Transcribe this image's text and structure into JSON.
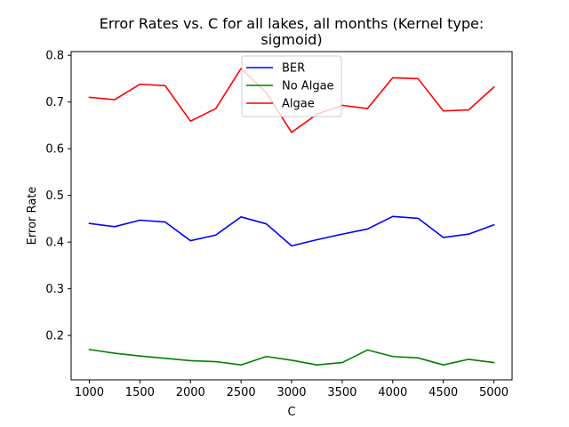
{
  "chart_data": {
    "type": "line",
    "title_line1": "Error Rates vs. C for all lakes, all months (Kernel type:",
    "title_line2": "sigmoid)",
    "xlabel": "C",
    "ylabel": "Error Rate",
    "xlim": [
      820,
      5180
    ],
    "ylim": [
      0.105,
      0.808
    ],
    "xticks": [
      1000,
      1500,
      2000,
      2500,
      3000,
      3500,
      4000,
      4500,
      5000
    ],
    "yticks": [
      0.2,
      0.3,
      0.4,
      0.5,
      0.6,
      0.7,
      0.8
    ],
    "ytick_labels": [
      "0.2",
      "0.3",
      "0.4",
      "0.5",
      "0.6",
      "0.7",
      "0.8"
    ],
    "grid": false,
    "legend_position": "top-center",
    "x": [
      1000,
      1250,
      1500,
      1750,
      2000,
      2250,
      2500,
      2750,
      3000,
      3250,
      3500,
      3750,
      4000,
      4250,
      4500,
      4750,
      5000
    ],
    "series": [
      {
        "name": "BER",
        "color": "#0000ff",
        "values": [
          0.44,
          0.433,
          0.447,
          0.443,
          0.403,
          0.415,
          0.454,
          0.439,
          0.392,
          0.405,
          0.417,
          0.428,
          0.455,
          0.451,
          0.41,
          0.417,
          0.437
        ]
      },
      {
        "name": "No Algae",
        "color": "#008000",
        "values": [
          0.17,
          0.162,
          0.156,
          0.151,
          0.146,
          0.144,
          0.137,
          0.155,
          0.147,
          0.137,
          0.142,
          0.169,
          0.155,
          0.152,
          0.137,
          0.149,
          0.142
        ]
      },
      {
        "name": "Algae",
        "color": "#ff0000",
        "values": [
          0.71,
          0.705,
          0.738,
          0.735,
          0.659,
          0.686,
          0.772,
          0.72,
          0.635,
          0.674,
          0.693,
          0.686,
          0.752,
          0.75,
          0.681,
          0.683,
          0.732
        ]
      }
    ]
  }
}
